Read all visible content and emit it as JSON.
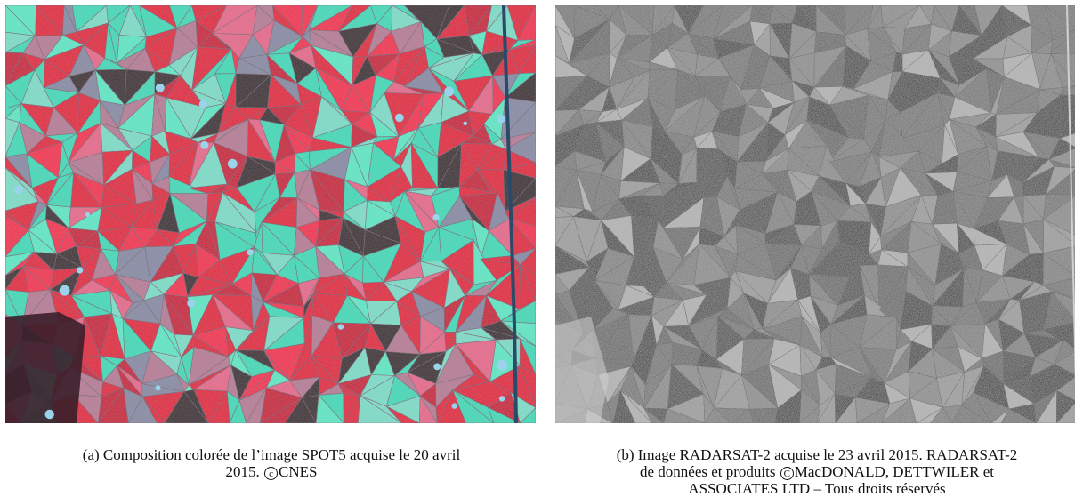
{
  "panel_a": {
    "caption_text_line1": "(a) Composition colorée de l’image SPOT5 acquise le 20 avril",
    "caption_text_line2_pre": "2015. ",
    "copyright_symbol": "c",
    "caption_text_line2_post": "CNES"
  },
  "panel_b": {
    "caption_text_line1": "(b) Image RADARSAT-2 acquise le 23 avril 2015. RADARSAT-2",
    "caption_text_line2_pre": "de données et produits ",
    "copyright_symbol": "C",
    "caption_text_line2_post": "MacDONALD, DETTWILER et",
    "caption_text_line3": "ASSOCIATES LTD – Tous droits réservés"
  },
  "colors": {
    "spot_red": "#e0193c",
    "spot_cyan": "#3fd9b8",
    "spot_pink": "#e56a8c",
    "spot_dark": "#3a2a30",
    "sar_gray": "#6f6f6f",
    "sar_dark": "#2a2a2a",
    "sar_light": "#b4b4b4"
  }
}
